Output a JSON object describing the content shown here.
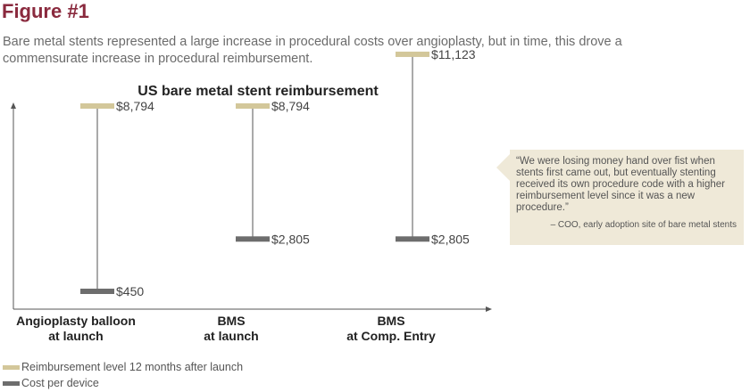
{
  "figure": {
    "title": "Figure #1",
    "subtitle": "Bare metal stents represented a large increase in procedural costs over angioplasty, but in time, this drove a commensurate increase in procedural reimbursement."
  },
  "chart_data": {
    "type": "range",
    "title": "US bare metal stent reimbursement",
    "categories": [
      {
        "line1": "Angioplasty balloon",
        "line2": "at launch"
      },
      {
        "line1": "BMS",
        "line2": "at launch"
      },
      {
        "line1": "BMS",
        "line2": "at Comp. Entry"
      }
    ],
    "series": [
      {
        "name": "Reimbursement level 12 months after launch",
        "color": "#d3c79a",
        "values": [
          8794,
          8794,
          11123
        ],
        "labels": [
          "$8,794",
          "$8,794",
          "$11,123"
        ]
      },
      {
        "name": "Cost per device",
        "color": "#6d6d6d",
        "values": [
          450,
          2805,
          2805
        ],
        "labels": [
          "$450",
          "$2,805",
          "$2,805"
        ]
      }
    ],
    "ylim": [
      0,
      13000
    ],
    "xlabel": "",
    "ylabel": ""
  },
  "quote": {
    "text": "“We were losing money hand over fist when stents first came out, but eventually stenting received its own procedure code with a higher reimbursement level since it was a new procedure.”",
    "attribution": "– COO, early adoption site of bare metal stents"
  },
  "legend": [
    {
      "label": "Reimbursement level 12 months after launch",
      "color": "#d3c79a"
    },
    {
      "label": "Cost per device",
      "color": "#6d6d6d"
    }
  ]
}
